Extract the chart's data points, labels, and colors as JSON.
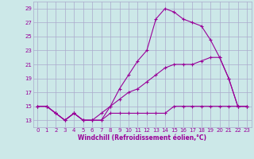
{
  "xlabel": "Windchill (Refroidissement éolien,°C)",
  "bg_color": "#cce8e8",
  "grid_color": "#aaaacc",
  "line_color": "#990099",
  "xlim": [
    -0.5,
    23.5
  ],
  "ylim": [
    12,
    30
  ],
  "yticks": [
    13,
    15,
    17,
    19,
    21,
    23,
    25,
    27,
    29
  ],
  "xticks": [
    0,
    1,
    2,
    3,
    4,
    5,
    6,
    7,
    8,
    9,
    10,
    11,
    12,
    13,
    14,
    15,
    16,
    17,
    18,
    19,
    20,
    21,
    22,
    23
  ],
  "series1_x": [
    0,
    1,
    2,
    3,
    4,
    5,
    6,
    7,
    8,
    9,
    10,
    11,
    12,
    13,
    14,
    15,
    16,
    17,
    18,
    19,
    20,
    21,
    22,
    23
  ],
  "series1_y": [
    15,
    15,
    14,
    13,
    14,
    13,
    13,
    13,
    14,
    14,
    14,
    14,
    14,
    14,
    14,
    15,
    15,
    15,
    15,
    15,
    15,
    15,
    15,
    15
  ],
  "series2_x": [
    0,
    1,
    2,
    3,
    4,
    5,
    6,
    7,
    8,
    9,
    10,
    11,
    12,
    13,
    14,
    15,
    16,
    17,
    18,
    19,
    20,
    21,
    22,
    23
  ],
  "series2_y": [
    15,
    15,
    14,
    13,
    14,
    13,
    13,
    13,
    15,
    17.5,
    19.5,
    21.5,
    23,
    27.5,
    29,
    28.5,
    27.5,
    27,
    26.5,
    24.5,
    22,
    19,
    15,
    15
  ],
  "series3_x": [
    0,
    1,
    2,
    3,
    4,
    5,
    6,
    7,
    8,
    9,
    10,
    11,
    12,
    13,
    14,
    15,
    16,
    17,
    18,
    19,
    20,
    21,
    22,
    23
  ],
  "series3_y": [
    15,
    15,
    14,
    13,
    14,
    13,
    13,
    14,
    15,
    16,
    17,
    17.5,
    18.5,
    19.5,
    20.5,
    21,
    21,
    21,
    21.5,
    22,
    22,
    19,
    15,
    15
  ]
}
